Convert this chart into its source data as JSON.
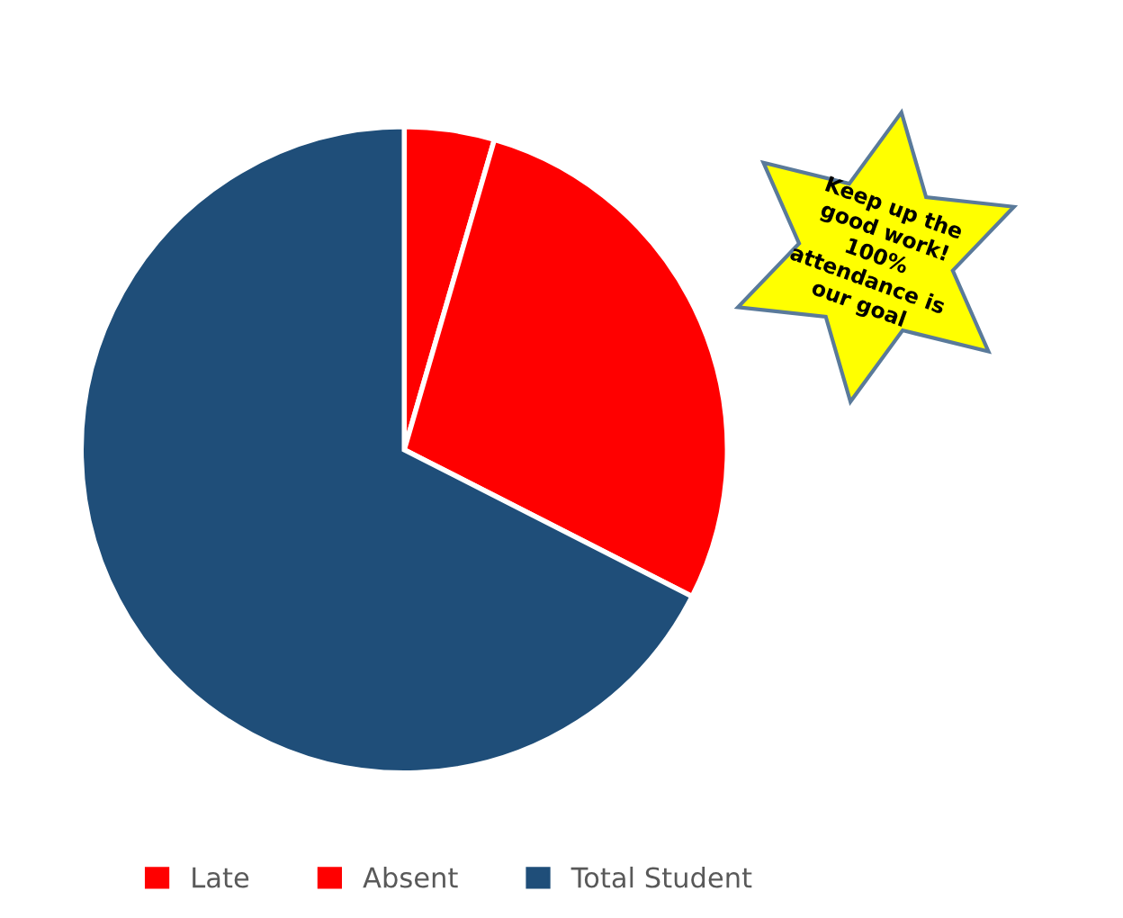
{
  "chart_data": {
    "type": "pie",
    "categories": [
      "Late",
      "Absent",
      "Total Student"
    ],
    "values": [
      4.5,
      28,
      67.5
    ],
    "colors": [
      "#ff0000",
      "#ff0000",
      "#1f4e79"
    ],
    "legend": "bottom",
    "annotations": [
      "Keep up the\ngood work!\n100%\nattendance is\nour goal"
    ]
  }
}
